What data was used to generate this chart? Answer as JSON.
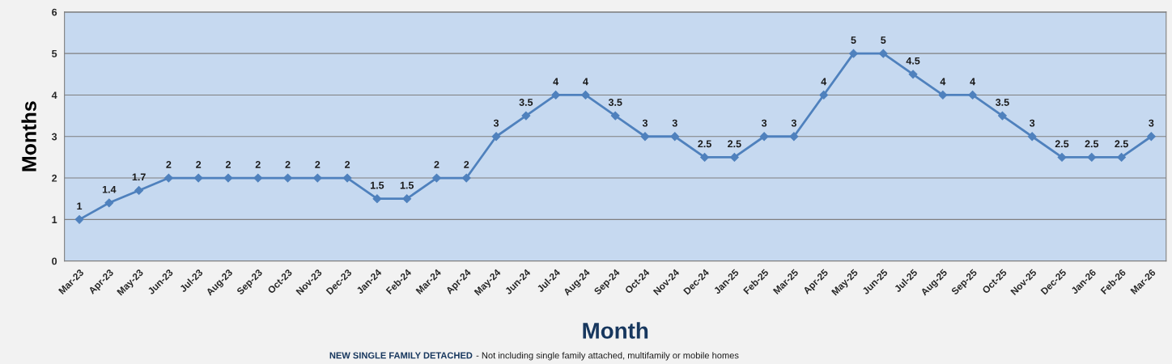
{
  "chart_data": {
    "type": "line",
    "categories": [
      "Mar-23",
      "Apr-23",
      "May-23",
      "Jun-23",
      "Jul-23",
      "Aug-23",
      "Sep-23",
      "Oct-23",
      "Nov-23",
      "Dec-23",
      "Jan-24",
      "Feb-24",
      "Mar-24",
      "Apr-24",
      "May-24",
      "Jun-24",
      "Jul-24",
      "Aug-24",
      "Sep-24",
      "Oct-24",
      "Nov-24",
      "Dec-24",
      "Jan-25",
      "Feb-25",
      "Mar-25",
      "Apr-25",
      "May-25",
      "Jun-25",
      "Jul-25",
      "Aug-25",
      "Sep-25",
      "Oct-25",
      "Nov-25",
      "Dec-25",
      "Jan-26",
      "Feb-26",
      "Mar-26"
    ],
    "series": [
      {
        "color": "#4f81bd",
        "values": [
          1,
          1.4,
          1.7,
          2,
          2,
          2,
          2,
          2,
          2,
          2,
          1.5,
          1.5,
          2,
          2,
          3,
          3.5,
          4,
          4,
          3.5,
          3,
          3,
          2.5,
          2.5,
          3,
          3,
          4,
          5,
          5,
          4.5,
          4,
          4,
          3.5,
          3,
          2.5,
          2.5,
          2.5,
          3
        ]
      }
    ],
    "xlabel": "Month",
    "ylabel": "Months",
    "ylim": [
      0,
      6
    ],
    "yticks": [
      0,
      1,
      2,
      3,
      4,
      5,
      6
    ],
    "grid": "y",
    "marker": "diamond",
    "line_style": "solid",
    "data_labels": true,
    "legend": false,
    "annotations": [
      "NEW SINGLE FAMILY DETACHED",
      "- Not including single family attached, multifamily or mobile homes"
    ]
  }
}
